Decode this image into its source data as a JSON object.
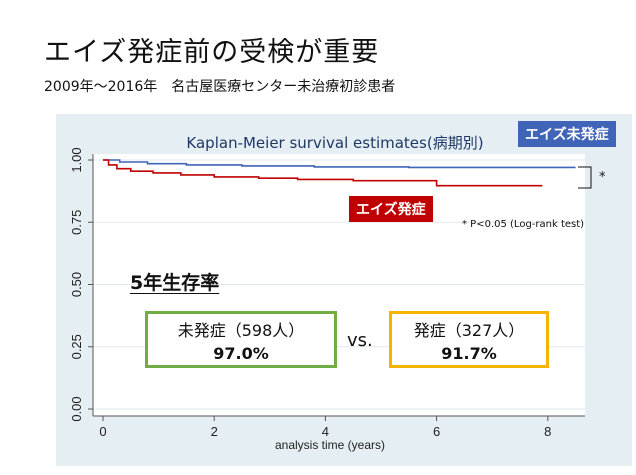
{
  "slide": {
    "title": "エイズ発症前の受検が重要",
    "subtitle": "2009年～2016年　名古屋医療センター未治療初診患者"
  },
  "chart_data": {
    "type": "line",
    "title": "Kaplan-Meier survival estimates(病期別)",
    "xlabel": "analysis time (years)",
    "ylabel": "",
    "xlim": [
      0,
      8.5
    ],
    "ylim": [
      0,
      1
    ],
    "x_ticks": [
      0,
      2,
      4,
      6,
      8
    ],
    "y_ticks": [
      "0.00",
      "0.25",
      "0.50",
      "0.75",
      "1.00"
    ],
    "grid": true,
    "series": [
      {
        "name": "エイズ未発症",
        "color": "#3f64b8",
        "step": true,
        "points": [
          [
            0,
            1.0
          ],
          [
            0.3,
            0.992
          ],
          [
            0.8,
            0.985
          ],
          [
            1.5,
            0.98
          ],
          [
            2.5,
            0.976
          ],
          [
            3.8,
            0.972
          ],
          [
            5.5,
            0.97
          ],
          [
            8.5,
            0.97
          ]
        ]
      },
      {
        "name": "エイズ発症",
        "color": "#c00000",
        "step": true,
        "points": [
          [
            0,
            1.0
          ],
          [
            0.1,
            0.98
          ],
          [
            0.25,
            0.965
          ],
          [
            0.5,
            0.955
          ],
          [
            0.9,
            0.948
          ],
          [
            1.4,
            0.94
          ],
          [
            2.0,
            0.932
          ],
          [
            2.8,
            0.927
          ],
          [
            3.5,
            0.922
          ],
          [
            4.5,
            0.917
          ],
          [
            6.0,
            0.897
          ],
          [
            7.9,
            0.897
          ]
        ]
      }
    ]
  },
  "legend": {
    "no_aids": "エイズ未発症",
    "aids": "エイズ発症",
    "star": "*",
    "pvalue_note": "* P<0.05 (Log-rank test)"
  },
  "survival": {
    "heading": "5年生存率",
    "no_aids_group": "未発症（598人）",
    "no_aids_rate": "97.0%",
    "vs": "vs.",
    "aids_group": "発症（327人）",
    "aids_rate": "91.7%"
  }
}
